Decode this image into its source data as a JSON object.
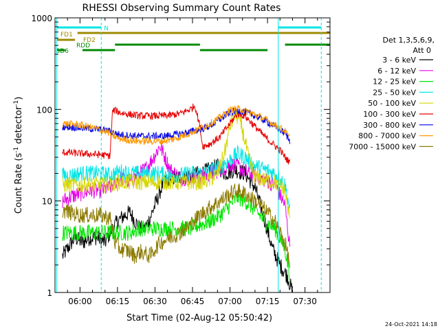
{
  "chart_data": {
    "type": "line",
    "title": "RHESSI Observing Summary Count Rates",
    "xlabel": "Start Time (02-Aug-12 05:50:42)",
    "ylabel_main": "Count Rate (s",
    "ylabel_sup": "-1",
    "ylabel_mid": " detector",
    "ylabel_sup2": "-1",
    "ylabel_end": ")",
    "yscale": "log",
    "ylim": [
      1,
      1000
    ],
    "xlim_minutes": [
      -10,
      100
    ],
    "x_tick_labels": [
      "06:00",
      "06:15",
      "06:30",
      "06:45",
      "07:00",
      "07:15",
      "07:30"
    ],
    "y_tick_labels": [
      "1",
      "10",
      "100",
      "1000"
    ],
    "legend_header_1": "Det 1,3,5,6,9,",
    "legend_header_2": "Att 0",
    "legend_placement": "right",
    "date_stamp": "24-Oct-2021 14:18",
    "flag_labels": {
      "n": "N",
      "fd1": "FD1",
      "fd2": "FD2",
      "rdd": "RDD",
      "bd6": "BD6"
    },
    "flag_colors": {
      "n": "#00e5e5",
      "fd": "#9c8a00",
      "rdd": "#008a00"
    },
    "night_periods_minutes": [
      [
        -9.3,
        8.5
      ],
      [
        79.3,
        96.5
      ]
    ],
    "series": [
      {
        "name": "3 - 6 keV",
        "color": "#000000",
        "x": [
          -7,
          -5,
          -2,
          1,
          4,
          7,
          10,
          12,
          15,
          18,
          20,
          22,
          24,
          26,
          28,
          30,
          33,
          36,
          40,
          44,
          48,
          52,
          55,
          58,
          62,
          66,
          70,
          74,
          77,
          80,
          83,
          85
        ],
        "values": [
          2.5,
          3,
          4,
          3.5,
          4,
          4,
          3.5,
          4.5,
          6,
          7,
          7.5,
          6,
          5,
          5,
          6.5,
          9,
          15,
          18,
          18,
          19,
          20,
          22,
          24,
          20,
          22,
          20,
          14,
          6,
          3,
          2,
          1.5,
          1
        ]
      },
      {
        "name": "6 - 12 keV",
        "color": "#e600e6",
        "x": [
          -7,
          -4,
          0,
          4,
          8,
          12,
          14,
          16,
          18,
          20,
          22,
          24,
          26,
          28,
          30,
          32,
          34,
          36,
          38,
          40,
          44,
          48,
          52,
          56,
          60,
          63,
          66,
          70,
          74,
          78,
          82,
          84
        ],
        "values": [
          10,
          11,
          12,
          13,
          13,
          14,
          16,
          18,
          17,
          16,
          18,
          20,
          22,
          26,
          32,
          40,
          30,
          22,
          20,
          18,
          18,
          18,
          20,
          22,
          25,
          24,
          21,
          19,
          17,
          15,
          9,
          3
        ]
      },
      {
        "name": "12 - 25 keV",
        "color": "#00e600",
        "x": [
          -7,
          0,
          8,
          12,
          16,
          20,
          24,
          28,
          32,
          36,
          40,
          44,
          48,
          52,
          56,
          60,
          63,
          66,
          70,
          74,
          78,
          82,
          84
        ],
        "values": [
          4.5,
          4.5,
          4.5,
          4.5,
          4.5,
          4.5,
          5,
          5,
          5,
          5,
          5,
          5,
          5.5,
          6,
          7,
          9,
          11,
          10,
          8,
          6,
          5,
          3,
          1.5
        ]
      },
      {
        "name": "25 - 50 keV",
        "color": "#00e5e5",
        "x": [
          -7,
          -4,
          0,
          4,
          8,
          12,
          14,
          16,
          20,
          24,
          28,
          32,
          36,
          40,
          44,
          48,
          52,
          56,
          60,
          63,
          66,
          70,
          74,
          78,
          82,
          84
        ],
        "values": [
          19,
          19,
          20,
          20,
          20,
          19,
          20,
          21,
          20,
          20,
          20,
          20,
          19,
          19,
          20,
          20,
          21,
          24,
          28,
          33,
          30,
          24,
          22,
          20,
          15,
          8
        ]
      },
      {
        "name": "50 - 100 keV",
        "color": "#d6d600",
        "x": [
          -7,
          0,
          8,
          12,
          16,
          20,
          24,
          28,
          32,
          36,
          40,
          44,
          48,
          52,
          55,
          58,
          60,
          62,
          64,
          66,
          68,
          70,
          74,
          78,
          82,
          84
        ],
        "values": [
          15,
          15,
          15,
          15,
          16,
          16,
          16,
          16,
          16,
          16,
          16,
          16,
          16,
          17,
          20,
          35,
          65,
          90,
          75,
          45,
          25,
          18,
          17,
          16,
          13,
          6
        ]
      },
      {
        "name": "100 - 300 keV",
        "color": "#e60000",
        "x": [
          -7,
          0,
          8,
          12,
          13,
          14,
          16,
          20,
          24,
          28,
          32,
          36,
          40,
          44,
          46,
          48,
          49,
          50,
          52,
          56,
          60,
          63,
          66,
          70,
          74,
          78,
          80,
          82,
          84
        ],
        "values": [
          34,
          33,
          32,
          31,
          95,
          98,
          92,
          88,
          85,
          85,
          85,
          86,
          90,
          100,
          110,
          65,
          40,
          40,
          42,
          50,
          70,
          90,
          85,
          65,
          50,
          40,
          36,
          30,
          26
        ]
      },
      {
        "name": "300 - 800 keV",
        "color": "#0000e6",
        "x": [
          -7,
          0,
          8,
          12,
          14,
          16,
          20,
          24,
          28,
          32,
          36,
          40,
          44,
          48,
          52,
          56,
          60,
          63,
          66,
          70,
          74,
          78,
          82,
          84
        ],
        "values": [
          65,
          63,
          60,
          58,
          55,
          53,
          52,
          51,
          51,
          51,
          52,
          54,
          57,
          60,
          66,
          78,
          92,
          98,
          94,
          85,
          75,
          65,
          55,
          45
        ]
      },
      {
        "name": "800 - 7000 keV",
        "color": "#ff9900",
        "x": [
          -7,
          0,
          8,
          12,
          14,
          16,
          20,
          24,
          28,
          32,
          36,
          40,
          44,
          48,
          52,
          56,
          60,
          63,
          66,
          70,
          74,
          78,
          82,
          84
        ],
        "values": [
          70,
          68,
          60,
          55,
          50,
          48,
          46,
          45,
          45,
          45,
          46,
          50,
          55,
          62,
          70,
          82,
          98,
          102,
          96,
          88,
          78,
          68,
          58,
          48
        ]
      },
      {
        "name": "7000 - 15000 keV",
        "color": "#8c7a00",
        "x": [
          -7,
          -4,
          0,
          4,
          8,
          12,
          14,
          16,
          20,
          22,
          24,
          28,
          30,
          32,
          36,
          40,
          44,
          48,
          52,
          56,
          60,
          63,
          66,
          70,
          74,
          78,
          82,
          84
        ],
        "values": [
          8,
          7.5,
          7,
          7,
          7,
          6.5,
          3.5,
          3,
          2.8,
          2.5,
          2.8,
          2.5,
          3,
          3.5,
          4,
          4.5,
          5.5,
          7,
          8.5,
          10,
          12,
          13,
          12,
          10,
          8,
          6,
          3.5,
          2
        ]
      }
    ]
  }
}
